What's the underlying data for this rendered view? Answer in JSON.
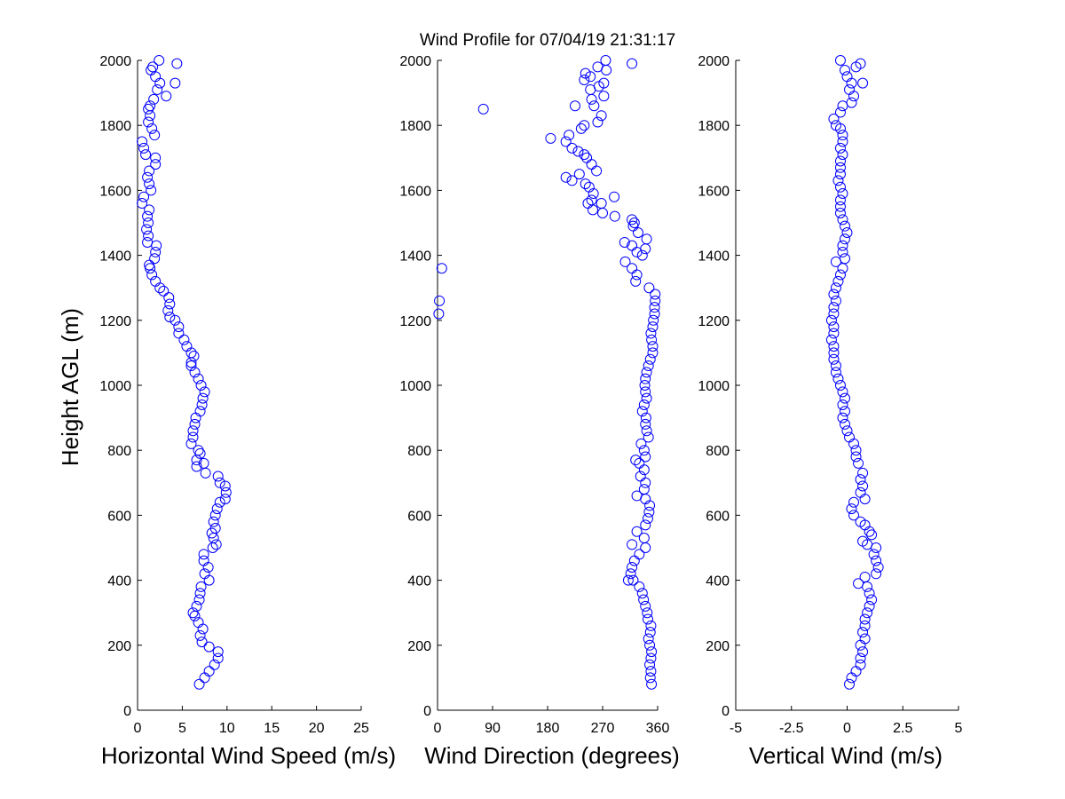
{
  "title": "Wind Profile for  07/04/19 21:31:17",
  "ylabel": "Height AGL (m)",
  "marker_color": "#0000ff",
  "chart_data": [
    {
      "type": "scatter",
      "xlabel": "Horizontal Wind Speed (m/s)",
      "ylabel": "Height AGL (m)",
      "xlim": [
        0,
        25
      ],
      "ylim": [
        0,
        2000
      ],
      "xticks": [
        0,
        5,
        10,
        15,
        20,
        25
      ],
      "xtick_labels": [
        "0",
        "5",
        "10",
        "15",
        "20",
        "25"
      ],
      "yticks": [
        0,
        200,
        400,
        600,
        800,
        1000,
        1200,
        1400,
        1600,
        1800,
        2000
      ],
      "ytick_labels": [
        "0",
        "200",
        "400",
        "600",
        "800",
        "1000",
        "1200",
        "1400",
        "1600",
        "1800",
        "2000"
      ],
      "points": [
        [
          6.9,
          80
        ],
        [
          7.5,
          100
        ],
        [
          8.0,
          120
        ],
        [
          8.6,
          140
        ],
        [
          9.0,
          160
        ],
        [
          9.0,
          180
        ],
        [
          8.0,
          195
        ],
        [
          7.2,
          210
        ],
        [
          7.0,
          230
        ],
        [
          7.3,
          250
        ],
        [
          6.8,
          270
        ],
        [
          6.4,
          290
        ],
        [
          6.2,
          300
        ],
        [
          6.6,
          320
        ],
        [
          6.9,
          340
        ],
        [
          7.0,
          360
        ],
        [
          7.1,
          380
        ],
        [
          8.0,
          400
        ],
        [
          7.5,
          420
        ],
        [
          7.9,
          440
        ],
        [
          7.4,
          460
        ],
        [
          7.4,
          480
        ],
        [
          8.4,
          500
        ],
        [
          8.8,
          510
        ],
        [
          8.5,
          530
        ],
        [
          8.3,
          545
        ],
        [
          8.7,
          560
        ],
        [
          8.5,
          580
        ],
        [
          8.7,
          600
        ],
        [
          8.9,
          620
        ],
        [
          9.2,
          640
        ],
        [
          9.8,
          650
        ],
        [
          9.9,
          670
        ],
        [
          9.8,
          690
        ],
        [
          9.2,
          700
        ],
        [
          9.0,
          720
        ],
        [
          7.6,
          730
        ],
        [
          6.6,
          750
        ],
        [
          7.4,
          760
        ],
        [
          6.6,
          770
        ],
        [
          7.0,
          790
        ],
        [
          6.8,
          800
        ],
        [
          6.0,
          820
        ],
        [
          6.2,
          840
        ],
        [
          6.2,
          860
        ],
        [
          6.4,
          880
        ],
        [
          6.5,
          900
        ],
        [
          7.0,
          920
        ],
        [
          7.2,
          940
        ],
        [
          7.3,
          960
        ],
        [
          7.5,
          980
        ],
        [
          7.1,
          1000
        ],
        [
          6.8,
          1020
        ],
        [
          6.4,
          1040
        ],
        [
          6.0,
          1060
        ],
        [
          6.0,
          1070
        ],
        [
          6.3,
          1090
        ],
        [
          6.0,
          1100
        ],
        [
          5.5,
          1120
        ],
        [
          5.2,
          1140
        ],
        [
          4.6,
          1160
        ],
        [
          4.6,
          1180
        ],
        [
          4.2,
          1200
        ],
        [
          3.6,
          1210
        ],
        [
          3.4,
          1230
        ],
        [
          3.6,
          1250
        ],
        [
          3.5,
          1270
        ],
        [
          2.9,
          1290
        ],
        [
          2.5,
          1300
        ],
        [
          2.0,
          1320
        ],
        [
          1.6,
          1340
        ],
        [
          1.4,
          1360
        ],
        [
          1.3,
          1370
        ],
        [
          1.9,
          1390
        ],
        [
          2.0,
          1410
        ],
        [
          2.1,
          1430
        ],
        [
          1.1,
          1440
        ],
        [
          1.2,
          1460
        ],
        [
          1.0,
          1480
        ],
        [
          1.2,
          1500
        ],
        [
          1.1,
          1520
        ],
        [
          1.3,
          1540
        ],
        [
          0.5,
          1560
        ],
        [
          0.7,
          1580
        ],
        [
          1.5,
          1600
        ],
        [
          1.3,
          1620
        ],
        [
          1.1,
          1640
        ],
        [
          1.3,
          1660
        ],
        [
          2.0,
          1680
        ],
        [
          2.0,
          1700
        ],
        [
          0.9,
          1710
        ],
        [
          0.7,
          1730
        ],
        [
          0.5,
          1750
        ],
        [
          1.9,
          1770
        ],
        [
          1.6,
          1790
        ],
        [
          1.2,
          1810
        ],
        [
          1.4,
          1830
        ],
        [
          1.2,
          1850
        ],
        [
          1.4,
          1860
        ],
        [
          1.8,
          1880
        ],
        [
          3.2,
          1890
        ],
        [
          2.2,
          1910
        ],
        [
          2.5,
          1930
        ],
        [
          4.2,
          1930
        ],
        [
          2.0,
          1950
        ],
        [
          1.5,
          1970
        ],
        [
          1.7,
          1980
        ],
        [
          4.4,
          1990
        ],
        [
          2.4,
          2000
        ]
      ]
    },
    {
      "type": "scatter",
      "xlabel": "Wind Direction (degrees)",
      "ylabel": "",
      "xlim": [
        0,
        360
      ],
      "ylim": [
        0,
        2000
      ],
      "xticks": [
        0,
        90,
        180,
        270,
        360
      ],
      "xtick_labels": [
        "0",
        "90",
        "180",
        "270",
        "360"
      ],
      "yticks": [
        0,
        200,
        400,
        600,
        800,
        1000,
        1200,
        1400,
        1600,
        1800,
        2000
      ],
      "ytick_labels": [
        "0",
        "200",
        "400",
        "600",
        "800",
        "1000",
        "1200",
        "1400",
        "1600",
        "1800",
        "2000"
      ],
      "points": [
        [
          350,
          80
        ],
        [
          348,
          100
        ],
        [
          349,
          120
        ],
        [
          347,
          140
        ],
        [
          349,
          160
        ],
        [
          350,
          180
        ],
        [
          347,
          200
        ],
        [
          345,
          220
        ],
        [
          348,
          240
        ],
        [
          349,
          260
        ],
        [
          344,
          280
        ],
        [
          343,
          300
        ],
        [
          340,
          320
        ],
        [
          337,
          340
        ],
        [
          335,
          360
        ],
        [
          330,
          380
        ],
        [
          320,
          400
        ],
        [
          312,
          400
        ],
        [
          316,
          420
        ],
        [
          318,
          440
        ],
        [
          322,
          460
        ],
        [
          330,
          480
        ],
        [
          340,
          500
        ],
        [
          318,
          510
        ],
        [
          338,
          530
        ],
        [
          326,
          550
        ],
        [
          340,
          570
        ],
        [
          344,
          590
        ],
        [
          346,
          610
        ],
        [
          347,
          630
        ],
        [
          340,
          650
        ],
        [
          326,
          660
        ],
        [
          338,
          680
        ],
        [
          340,
          700
        ],
        [
          332,
          720
        ],
        [
          338,
          740
        ],
        [
          330,
          760
        ],
        [
          324,
          770
        ],
        [
          340,
          780
        ],
        [
          338,
          800
        ],
        [
          333,
          820
        ],
        [
          345,
          840
        ],
        [
          342,
          860
        ],
        [
          340,
          880
        ],
        [
          341,
          900
        ],
        [
          335,
          920
        ],
        [
          338,
          940
        ],
        [
          342,
          960
        ],
        [
          340,
          980
        ],
        [
          339,
          1000
        ],
        [
          340,
          1020
        ],
        [
          342,
          1040
        ],
        [
          345,
          1060
        ],
        [
          348,
          1080
        ],
        [
          352,
          1100
        ],
        [
          352,
          1120
        ],
        [
          350,
          1140
        ],
        [
          349,
          1160
        ],
        [
          352,
          1180
        ],
        [
          353,
          1200
        ],
        [
          355,
          1220
        ],
        [
          355,
          1240
        ],
        [
          356,
          1260
        ],
        [
          356,
          1280
        ],
        [
          346,
          1300
        ],
        [
          324,
          1320
        ],
        [
          326,
          1340
        ],
        [
          318,
          1360
        ],
        [
          307,
          1380
        ],
        [
          335,
          1400
        ],
        [
          326,
          1410
        ],
        [
          340,
          1420
        ],
        [
          318,
          1430
        ],
        [
          306,
          1440
        ],
        [
          342,
          1450
        ],
        [
          328,
          1470
        ],
        [
          320,
          1490
        ],
        [
          322,
          1500
        ],
        [
          318,
          1510
        ],
        [
          290,
          1520
        ],
        [
          270,
          1530
        ],
        [
          254,
          1540
        ],
        [
          246,
          1560
        ],
        [
          252,
          1570
        ],
        [
          268,
          1560
        ],
        [
          289,
          1580
        ],
        [
          255,
          1590
        ],
        [
          248,
          1610
        ],
        [
          242,
          1620
        ],
        [
          220,
          1630
        ],
        [
          210,
          1640
        ],
        [
          232,
          1650
        ],
        [
          260,
          1660
        ],
        [
          252,
          1680
        ],
        [
          244,
          1700
        ],
        [
          240,
          1710
        ],
        [
          230,
          1720
        ],
        [
          220,
          1730
        ],
        [
          210,
          1750
        ],
        [
          185,
          1760
        ],
        [
          215,
          1770
        ],
        [
          235,
          1790
        ],
        [
          240,
          1800
        ],
        [
          262,
          1810
        ],
        [
          268,
          1830
        ],
        [
          256,
          1860
        ],
        [
          225,
          1860
        ],
        [
          75,
          1850
        ],
        [
          252,
          1880
        ],
        [
          272,
          1890
        ],
        [
          250,
          1910
        ],
        [
          264,
          1920
        ],
        [
          272,
          1930
        ],
        [
          240,
          1940
        ],
        [
          242,
          1960
        ],
        [
          262,
          1980
        ],
        [
          250,
          1950
        ],
        [
          276,
          1970
        ],
        [
          275,
          2000
        ],
        [
          318,
          1990
        ],
        [
          2,
          1220
        ],
        [
          3,
          1260
        ],
        [
          7,
          1360
        ]
      ]
    },
    {
      "type": "scatter",
      "xlabel": "Vertical Wind (m/s)",
      "ylabel": "",
      "xlim": [
        -5,
        5
      ],
      "ylim": [
        0,
        2000
      ],
      "xticks": [
        -5,
        -2.5,
        0,
        2.5,
        5
      ],
      "xtick_labels": [
        "-5",
        "-2.5",
        "0",
        "2.5",
        "5"
      ],
      "yticks": [
        0,
        200,
        400,
        600,
        800,
        1000,
        1200,
        1400,
        1600,
        1800,
        2000
      ],
      "ytick_labels": [
        "0",
        "200",
        "400",
        "600",
        "800",
        "1000",
        "1200",
        "1400",
        "1600",
        "1800",
        "2000"
      ],
      "points": [
        [
          0.1,
          80
        ],
        [
          0.2,
          100
        ],
        [
          0.4,
          120
        ],
        [
          0.6,
          140
        ],
        [
          0.6,
          160
        ],
        [
          0.7,
          180
        ],
        [
          0.6,
          200
        ],
        [
          0.8,
          220
        ],
        [
          0.7,
          240
        ],
        [
          0.8,
          260
        ],
        [
          0.8,
          280
        ],
        [
          0.9,
          300
        ],
        [
          1.0,
          320
        ],
        [
          1.1,
          340
        ],
        [
          1.0,
          360
        ],
        [
          0.9,
          380
        ],
        [
          0.5,
          390
        ],
        [
          0.8,
          410
        ],
        [
          1.3,
          420
        ],
        [
          1.4,
          440
        ],
        [
          1.3,
          460
        ],
        [
          1.2,
          480
        ],
        [
          1.3,
          500
        ],
        [
          0.9,
          510
        ],
        [
          0.7,
          520
        ],
        [
          1.1,
          540
        ],
        [
          1.0,
          550
        ],
        [
          0.8,
          570
        ],
        [
          0.6,
          580
        ],
        [
          0.3,
          600
        ],
        [
          0.2,
          620
        ],
        [
          0.3,
          640
        ],
        [
          0.8,
          650
        ],
        [
          0.6,
          670
        ],
        [
          0.7,
          690
        ],
        [
          0.6,
          710
        ],
        [
          0.7,
          730
        ],
        [
          0.5,
          760
        ],
        [
          0.4,
          780
        ],
        [
          0.4,
          800
        ],
        [
          0.3,
          820
        ],
        [
          0.1,
          840
        ],
        [
          0.0,
          860
        ],
        [
          -0.1,
          880
        ],
        [
          -0.2,
          900
        ],
        [
          -0.1,
          920
        ],
        [
          -0.2,
          940
        ],
        [
          -0.1,
          960
        ],
        [
          -0.2,
          980
        ],
        [
          -0.3,
          1000
        ],
        [
          -0.4,
          1020
        ],
        [
          -0.5,
          1040
        ],
        [
          -0.5,
          1060
        ],
        [
          -0.6,
          1080
        ],
        [
          -0.6,
          1100
        ],
        [
          -0.6,
          1120
        ],
        [
          -0.7,
          1140
        ],
        [
          -0.6,
          1160
        ],
        [
          -0.6,
          1180
        ],
        [
          -0.7,
          1200
        ],
        [
          -0.6,
          1220
        ],
        [
          -0.6,
          1240
        ],
        [
          -0.5,
          1260
        ],
        [
          -0.6,
          1280
        ],
        [
          -0.5,
          1300
        ],
        [
          -0.4,
          1320
        ],
        [
          -0.3,
          1340
        ],
        [
          -0.2,
          1360
        ],
        [
          -0.5,
          1380
        ],
        [
          -0.1,
          1390
        ],
        [
          -0.2,
          1410
        ],
        [
          -0.2,
          1430
        ],
        [
          -0.1,
          1450
        ],
        [
          0.0,
          1470
        ],
        [
          -0.1,
          1490
        ],
        [
          -0.2,
          1510
        ],
        [
          -0.3,
          1530
        ],
        [
          -0.3,
          1550
        ],
        [
          -0.3,
          1570
        ],
        [
          -0.2,
          1590
        ],
        [
          -0.3,
          1610
        ],
        [
          -0.4,
          1630
        ],
        [
          -0.3,
          1650
        ],
        [
          -0.3,
          1670
        ],
        [
          -0.3,
          1690
        ],
        [
          -0.2,
          1710
        ],
        [
          -0.3,
          1730
        ],
        [
          -0.2,
          1750
        ],
        [
          -0.2,
          1770
        ],
        [
          -0.3,
          1790
        ],
        [
          -0.5,
          1800
        ],
        [
          -0.6,
          1820
        ],
        [
          -0.3,
          1840
        ],
        [
          -0.2,
          1860
        ],
        [
          0.2,
          1870
        ],
        [
          0.3,
          1890
        ],
        [
          0.1,
          1910
        ],
        [
          0.2,
          1930
        ],
        [
          0.7,
          1930
        ],
        [
          0.0,
          1950
        ],
        [
          -0.1,
          1970
        ],
        [
          0.4,
          1980
        ],
        [
          0.6,
          1990
        ],
        [
          -0.3,
          2000
        ]
      ]
    }
  ]
}
